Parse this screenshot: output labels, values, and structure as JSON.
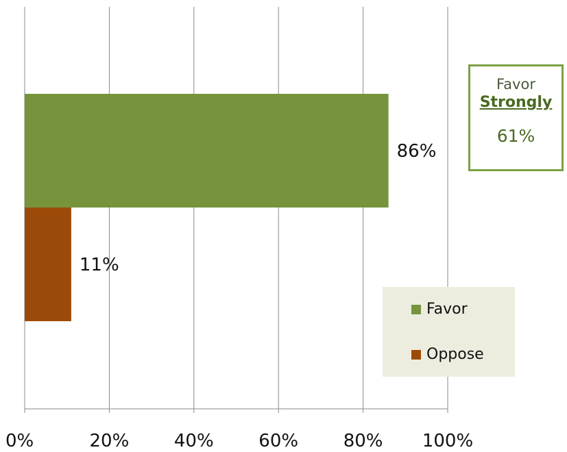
{
  "chart_data": {
    "type": "bar",
    "orientation": "horizontal",
    "categories": [
      "Favor",
      "Oppose"
    ],
    "values": [
      86,
      11
    ],
    "data_labels": [
      "86%",
      "11%"
    ],
    "xlim": [
      0,
      100
    ],
    "xticks": [
      0,
      20,
      40,
      60,
      80,
      100
    ],
    "xtick_labels": [
      "0%",
      "20%",
      "40%",
      "60%",
      "80%",
      "100%"
    ],
    "grid": "vertical",
    "colors": [
      "#77933c",
      "#9c4a09"
    ],
    "legend": {
      "position": "right",
      "items": [
        {
          "label": "Favor",
          "color": "#77933c"
        },
        {
          "label": "Oppose",
          "color": "#9c4a09"
        }
      ]
    },
    "annotation": {
      "line1": "Favor",
      "line2": "Strongly",
      "value": "61%",
      "border_color": "#7aa045"
    }
  }
}
